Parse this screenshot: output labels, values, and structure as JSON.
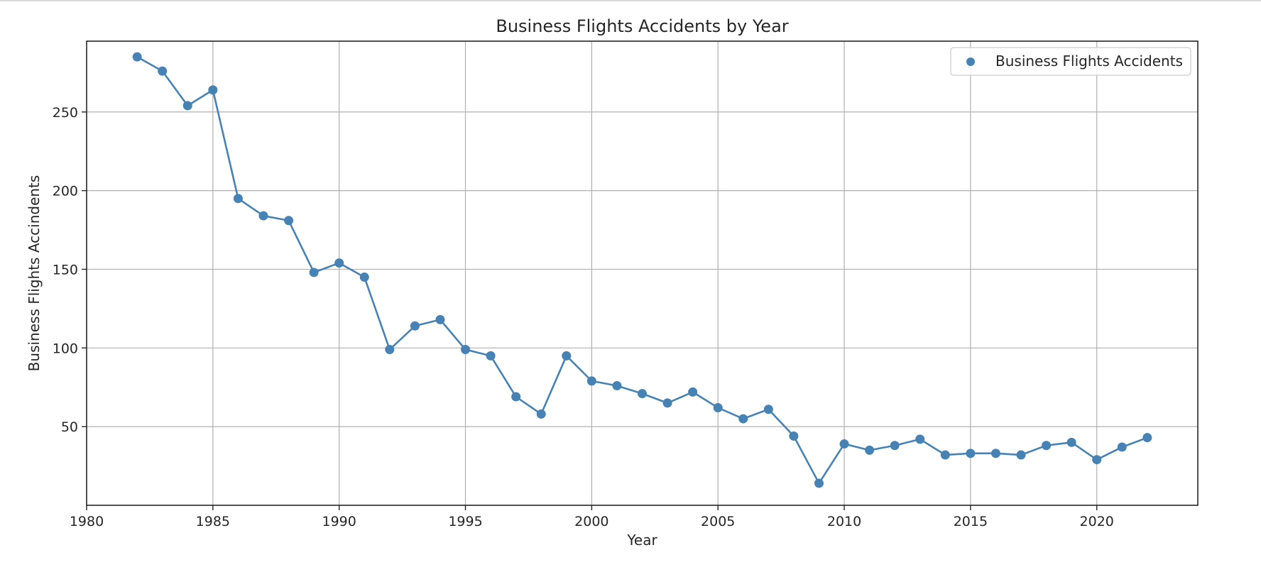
{
  "chart_data": {
    "type": "line",
    "title": "Business Flights Accidents by Year",
    "xlabel": "Year",
    "ylabel": "Business Flights Accindents",
    "xlim": [
      1980,
      2024
    ],
    "ylim": [
      0,
      295
    ],
    "x_ticks": [
      1980,
      1985,
      1990,
      1995,
      2000,
      2005,
      2010,
      2015,
      2020
    ],
    "y_ticks": [
      50,
      100,
      150,
      200,
      250
    ],
    "grid": true,
    "legend_position": "top-right",
    "line_color": "#4682b4",
    "series": [
      {
        "name": "Business Flights Accidents",
        "x": [
          1982,
          1983,
          1984,
          1985,
          1986,
          1987,
          1988,
          1989,
          1990,
          1991,
          1992,
          1993,
          1994,
          1995,
          1996,
          1997,
          1998,
          1999,
          2000,
          2001,
          2002,
          2003,
          2004,
          2005,
          2006,
          2007,
          2008,
          2009,
          2010,
          2011,
          2012,
          2013,
          2014,
          2015,
          2016,
          2017,
          2018,
          2019,
          2020,
          2021,
          2022
        ],
        "values": [
          285,
          276,
          254,
          264,
          195,
          184,
          181,
          148,
          154,
          145,
          99,
          114,
          118,
          99,
          95,
          69,
          58,
          95,
          79,
          76,
          71,
          65,
          72,
          62,
          55,
          61,
          44,
          14,
          39,
          35,
          38,
          42,
          32,
          33,
          33,
          32,
          38,
          40,
          29,
          37,
          43
        ]
      }
    ]
  }
}
